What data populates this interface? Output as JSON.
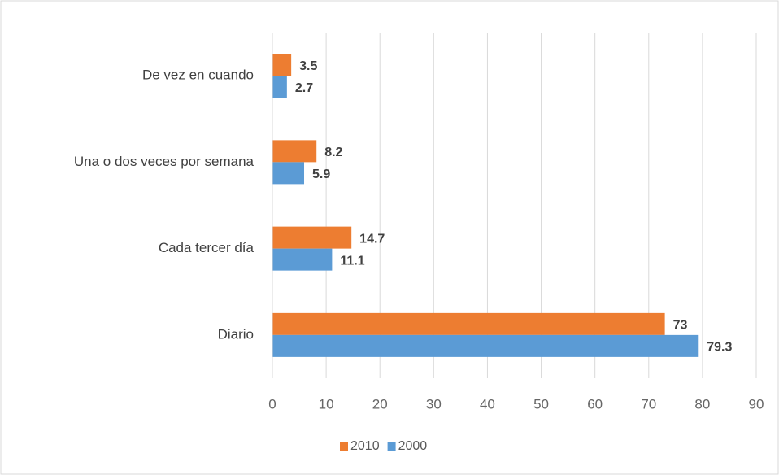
{
  "chart_data": {
    "type": "barh",
    "categories": [
      "De vez en cuando",
      "Una o dos veces por semana",
      "Cada tercer día",
      "Diario"
    ],
    "series": [
      {
        "name": "2010",
        "color": "#ED7D31",
        "values": [
          3.5,
          8.2,
          14.7,
          73
        ]
      },
      {
        "name": "2000",
        "color": "#5B9BD5",
        "values": [
          2.7,
          5.9,
          11.1,
          79.3
        ]
      }
    ],
    "xlim": [
      0,
      90
    ],
    "xticks": [
      0,
      10,
      20,
      30,
      40,
      50,
      60,
      70,
      80,
      90
    ],
    "grid": true,
    "legend": "bottom"
  }
}
